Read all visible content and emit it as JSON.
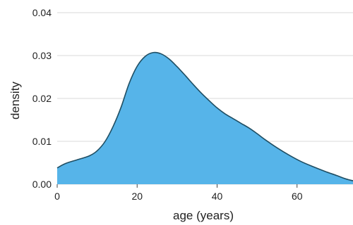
{
  "chart_data": {
    "type": "area",
    "xlabel": "age (years)",
    "ylabel": "density",
    "xlim": [
      0,
      74
    ],
    "ylim": [
      0,
      0.04
    ],
    "x_ticks": [
      0,
      20,
      40,
      60
    ],
    "x_tick_labels": [
      "0",
      "20",
      "40",
      "60"
    ],
    "y_ticks": [
      0,
      0.01,
      0.02,
      0.03,
      0.04
    ],
    "y_tick_labels": [
      "0.00",
      "0.01",
      "0.02",
      "0.03",
      "0.04"
    ],
    "grid": "horizontal",
    "fill_color": "#56b4e9",
    "line_color": "#1f4e63",
    "x": [
      0,
      2,
      5,
      8,
      10,
      12,
      14,
      16,
      18,
      20,
      22,
      24,
      26,
      28,
      30,
      32,
      34,
      36,
      38,
      40,
      42,
      44,
      46,
      48,
      50,
      52,
      55,
      58,
      61,
      64,
      67,
      70,
      72,
      74
    ],
    "y": [
      0.0038,
      0.0048,
      0.0057,
      0.0066,
      0.0078,
      0.01,
      0.0135,
      0.018,
      0.0235,
      0.0275,
      0.0298,
      0.0307,
      0.0304,
      0.0292,
      0.0274,
      0.0254,
      0.0233,
      0.0213,
      0.0195,
      0.0178,
      0.0164,
      0.0153,
      0.0142,
      0.0131,
      0.0118,
      0.0104,
      0.0085,
      0.0068,
      0.0053,
      0.0041,
      0.003,
      0.002,
      0.0013,
      0.0008
    ]
  }
}
